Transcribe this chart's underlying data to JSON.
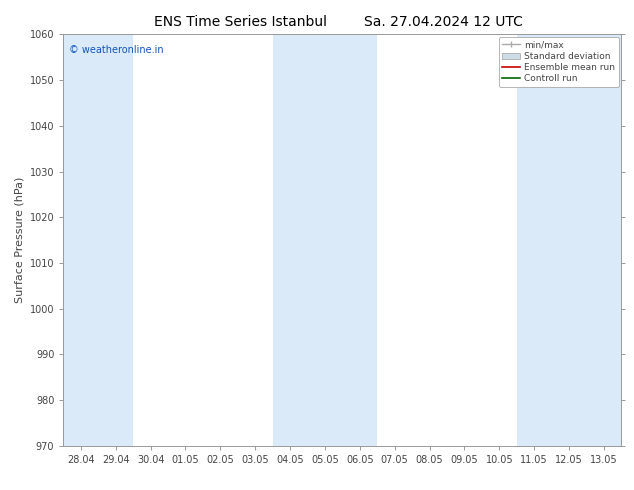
{
  "title_left": "ENS Time Series Istanbul",
  "title_right": "Sa. 27.04.2024 12 UTC",
  "ylabel": "Surface Pressure (hPa)",
  "ylim": [
    970,
    1060
  ],
  "yticks": [
    970,
    980,
    990,
    1000,
    1010,
    1020,
    1030,
    1040,
    1050,
    1060
  ],
  "x_labels": [
    "28.04",
    "29.04",
    "30.04",
    "01.05",
    "02.05",
    "03.05",
    "04.05",
    "05.05",
    "06.05",
    "07.05",
    "08.05",
    "09.05",
    "10.05",
    "11.05",
    "12.05",
    "13.05"
  ],
  "shade_indices": [
    0,
    1,
    6,
    7,
    8,
    13,
    14,
    15
  ],
  "band_color": "#dbeaf8",
  "background_color": "#ffffff",
  "watermark": "© weatheronline.in",
  "legend_min_max_label": "min/max",
  "legend_std_label": "Standard deviation",
  "legend_ens_label": "Ensemble mean run",
  "legend_ctrl_label": "Controll run",
  "legend_min_max_color": "#aaaaaa",
  "legend_std_color": "#ccdde8",
  "legend_ens_color": "#cc0000",
  "legend_ctrl_color": "#006600",
  "spine_color": "#999999",
  "tick_color": "#444444",
  "title_fontsize": 10,
  "label_fontsize": 8,
  "tick_fontsize": 7,
  "watermark_color": "#1155bb"
}
